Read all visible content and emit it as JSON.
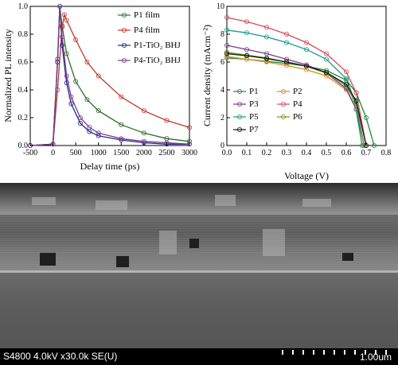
{
  "chart_data": [
    {
      "type": "line",
      "xlabel": "Delay time (ps)",
      "ylabel": "Normalized PL intensity",
      "xlim": [
        -500,
        3000
      ],
      "ylim": [
        0.0,
        1.0
      ],
      "xticks": [
        "-500",
        "0",
        "500",
        "1000",
        "1500",
        "2000",
        "2500",
        "3000"
      ],
      "yticks": [
        "0.0",
        "0.2",
        "0.4",
        "0.6",
        "0.8",
        "1.0"
      ],
      "legend_position": "top-right",
      "series": [
        {
          "name": "P1 film",
          "color": "#2a6f2a",
          "x": [
            -500,
            0,
            100,
            150,
            200,
            300,
            500,
            750,
            1000,
            1500,
            2000,
            2500,
            3000
          ],
          "y": [
            0.0,
            0.01,
            0.6,
            1.0,
            0.86,
            0.66,
            0.46,
            0.33,
            0.25,
            0.15,
            0.09,
            0.05,
            0.03
          ]
        },
        {
          "name": "P4 film",
          "color": "#c0392b",
          "x": [
            -500,
            0,
            100,
            200,
            250,
            300,
            500,
            750,
            1000,
            1500,
            2000,
            2500,
            3000
          ],
          "y": [
            0.0,
            0.01,
            0.4,
            0.85,
            0.94,
            0.9,
            0.76,
            0.6,
            0.5,
            0.35,
            0.25,
            0.18,
            0.13
          ]
        },
        {
          "name": "P1-TiO₂ BHJ",
          "color": "#1e2b8a",
          "x": [
            -500,
            0,
            100,
            150,
            200,
            300,
            400,
            600,
            800,
            1000,
            1500,
            2000,
            2500,
            3000
          ],
          "y": [
            0.0,
            0.01,
            0.6,
            1.0,
            0.72,
            0.45,
            0.3,
            0.16,
            0.1,
            0.07,
            0.04,
            0.02,
            0.01,
            0.01
          ]
        },
        {
          "name": "P4-TiO₂ BHJ",
          "color": "#7a3a8e",
          "x": [
            -500,
            0,
            100,
            150,
            200,
            300,
            400,
            600,
            800,
            1000,
            1500,
            2000,
            2500,
            3000
          ],
          "y": [
            0.0,
            0.01,
            0.62,
            1.0,
            0.78,
            0.5,
            0.35,
            0.2,
            0.13,
            0.09,
            0.05,
            0.03,
            0.02,
            0.01
          ]
        }
      ]
    },
    {
      "type": "line",
      "xlabel": "Voltage (V)",
      "ylabel": "Current density (mAcm⁻²)",
      "xlim": [
        0.0,
        0.8
      ],
      "ylim": [
        0,
        10
      ],
      "xticks": [
        "0.0",
        "0.1",
        "0.2",
        "0.3",
        "0.4",
        "0.5",
        "0.6",
        "0.7",
        "0.8"
      ],
      "yticks": [
        "0",
        "2",
        "4",
        "6",
        "8",
        "10"
      ],
      "legend_position": "center-left",
      "series": [
        {
          "name": "P1",
          "color": "#1a8a3a",
          "x": [
            0,
            0.1,
            0.2,
            0.3,
            0.4,
            0.5,
            0.6,
            0.65,
            0.7,
            0.74
          ],
          "y": [
            6.3,
            6.2,
            6.05,
            5.9,
            5.7,
            5.4,
            4.7,
            3.8,
            2.0,
            0
          ]
        },
        {
          "name": "P2",
          "color": "#e08a1e",
          "x": [
            0,
            0.1,
            0.2,
            0.3,
            0.4,
            0.5,
            0.6,
            0.65,
            0.68
          ],
          "y": [
            6.4,
            6.2,
            6.0,
            5.75,
            5.45,
            5.0,
            4.0,
            2.6,
            0
          ]
        },
        {
          "name": "P3",
          "color": "#7a3a8e",
          "x": [
            0,
            0.1,
            0.2,
            0.3,
            0.4,
            0.5,
            0.6,
            0.65,
            0.69
          ],
          "y": [
            7.2,
            6.9,
            6.6,
            6.2,
            5.8,
            5.2,
            4.1,
            2.6,
            0
          ]
        },
        {
          "name": "P4",
          "color": "#d94a5a",
          "x": [
            0,
            0.1,
            0.2,
            0.3,
            0.4,
            0.5,
            0.6,
            0.65,
            0.7
          ],
          "y": [
            9.2,
            8.9,
            8.5,
            8.0,
            7.4,
            6.6,
            5.3,
            3.8,
            0
          ]
        },
        {
          "name": "P5",
          "color": "#1c9a8f",
          "x": [
            0,
            0.1,
            0.2,
            0.3,
            0.4,
            0.5,
            0.6,
            0.64,
            0.68
          ],
          "y": [
            8.3,
            8.1,
            7.8,
            7.4,
            6.9,
            6.2,
            4.8,
            3.3,
            0
          ]
        },
        {
          "name": "P6",
          "color": "#6a9a2a",
          "x": [
            0,
            0.1,
            0.2,
            0.3,
            0.4,
            0.5,
            0.6,
            0.65,
            0.69
          ],
          "y": [
            6.7,
            6.5,
            6.3,
            6.0,
            5.7,
            5.2,
            4.3,
            3.0,
            0
          ]
        },
        {
          "name": "P7",
          "color": "#111111",
          "x": [
            0,
            0.1,
            0.2,
            0.3,
            0.4,
            0.5,
            0.6,
            0.65,
            0.7
          ],
          "y": [
            6.6,
            6.45,
            6.25,
            6.0,
            5.7,
            5.25,
            4.4,
            3.2,
            0
          ]
        }
      ]
    }
  ],
  "sem_caption": {
    "info": "S4800 4.0kV x30.0k SE(U)",
    "scale": "1.00um"
  }
}
